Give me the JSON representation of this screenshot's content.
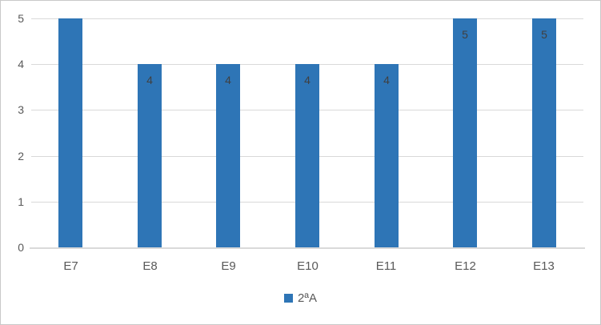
{
  "chart_data": {
    "type": "bar",
    "title": "",
    "xlabel": "",
    "ylabel": "",
    "categories": [
      "E7",
      "E8",
      "E9",
      "E10",
      "E11",
      "E12",
      "E13"
    ],
    "series": [
      {
        "name": "2ªA",
        "values": [
          5,
          4,
          4,
          4,
          4,
          5,
          5
        ]
      }
    ],
    "data_labels": [
      "",
      "4",
      "4",
      "4",
      "4",
      "5",
      "5"
    ],
    "ylim": [
      0,
      5
    ],
    "yticks": [
      0,
      1,
      2,
      3,
      4,
      5
    ],
    "grid": true,
    "legend_position": "bottom",
    "colors": {
      "bar": "#2e75b6",
      "gridline": "#d9d9d9",
      "axis_line": "#d9d9d9",
      "axis_label": "#595959",
      "data_label": "#404040",
      "frame_border": "#c9c9c9",
      "background": "#ffffff"
    }
  }
}
